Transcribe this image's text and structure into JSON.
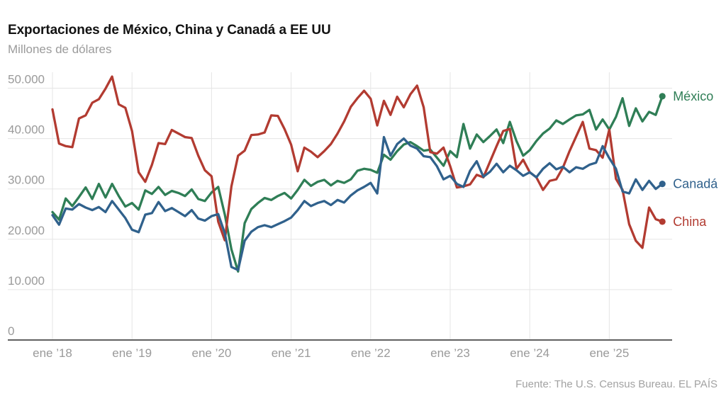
{
  "header": {
    "title": "Exportaciones de México, China y Canadá a EE UU",
    "subtitle": "Millones de dólares"
  },
  "footer": {
    "source": "Fuente: The U.S. Census Bureau. EL PAÍS"
  },
  "chart_data": {
    "type": "line",
    "title": "Exportaciones de México, China y Canadá a EE UU",
    "ylabel": "Millones de dólares",
    "x_start": "ene 2018",
    "x_end": "sep 2025",
    "x_frequency": "monthly",
    "ylim": [
      0,
      52500
    ],
    "grid": true,
    "legend_position": "right-of-line-ends",
    "y_ticks": [
      {
        "label": "0",
        "value": 0
      },
      {
        "label": "10.000",
        "value": 10000
      },
      {
        "label": "20.000",
        "value": 20000
      },
      {
        "label": "30.000",
        "value": 30000
      },
      {
        "label": "40.000",
        "value": 40000
      },
      {
        "label": "50.000",
        "value": 50000
      }
    ],
    "x_ticks": [
      {
        "label": "ene ’18",
        "month_index": 0
      },
      {
        "label": "ene ’19",
        "month_index": 12
      },
      {
        "label": "ene ’20",
        "month_index": 24
      },
      {
        "label": "ene ’21",
        "month_index": 36
      },
      {
        "label": "ene ’22",
        "month_index": 48
      },
      {
        "label": "ene ’23",
        "month_index": 60
      },
      {
        "label": "ene ’24",
        "month_index": 72
      },
      {
        "label": "ene ’25",
        "month_index": 84
      }
    ],
    "series": [
      {
        "id": "mexico",
        "name": "México",
        "color": "#2f7e56",
        "values": [
          25400,
          23900,
          28100,
          26600,
          28400,
          30300,
          28000,
          31000,
          28300,
          31000,
          28600,
          26500,
          27200,
          25900,
          29700,
          29000,
          30400,
          28800,
          29600,
          29200,
          28600,
          29900,
          28000,
          27600,
          29300,
          30400,
          24900,
          18000,
          13600,
          23200,
          26000,
          27200,
          28200,
          27800,
          28600,
          29200,
          28100,
          29800,
          31800,
          30600,
          31400,
          31800,
          30700,
          31600,
          31200,
          31900,
          33600,
          34000,
          33800,
          33200,
          36800,
          35800,
          37500,
          38800,
          39300,
          38500,
          37600,
          37800,
          36200,
          34600,
          37500,
          36300,
          42900,
          38000,
          40800,
          39300,
          40500,
          41800,
          39100,
          43300,
          39500,
          36600,
          37700,
          39500,
          41000,
          42000,
          43600,
          42900,
          43800,
          44600,
          44800,
          45700,
          41800,
          43800,
          41800,
          44300,
          48000,
          42500,
          46000,
          43400,
          45300,
          44700,
          48400
        ]
      },
      {
        "id": "china",
        "name": "China",
        "color": "#b23b31",
        "values": [
          45800,
          39000,
          38500,
          38300,
          44000,
          44600,
          47100,
          47800,
          49900,
          52300,
          46800,
          46100,
          41500,
          33300,
          31400,
          34800,
          39100,
          38900,
          41700,
          41000,
          40300,
          40100,
          36600,
          33700,
          32500,
          23500,
          19800,
          30500,
          36600,
          37600,
          40700,
          40800,
          41200,
          44600,
          44500,
          41900,
          38800,
          33500,
          38200,
          37400,
          36300,
          37500,
          38900,
          41000,
          43400,
          46300,
          48000,
          49500,
          47900,
          42600,
          47500,
          44700,
          48300,
          46200,
          48800,
          50500,
          46200,
          37300,
          37000,
          38200,
          34500,
          30300,
          30500,
          30900,
          32800,
          32300,
          35400,
          38500,
          41500,
          41900,
          34000,
          35800,
          33300,
          32300,
          29800,
          31600,
          31900,
          34200,
          37500,
          40400,
          43300,
          38000,
          37700,
          36200,
          41800,
          32000,
          29800,
          23000,
          19700,
          18300,
          26300,
          24000,
          23500
        ]
      },
      {
        "id": "canada",
        "name": "Canadá",
        "color": "#30618c",
        "values": [
          24800,
          22900,
          26100,
          25900,
          27000,
          26300,
          25800,
          26400,
          25400,
          27600,
          25900,
          24200,
          21900,
          21400,
          24900,
          25200,
          27400,
          25600,
          26200,
          25400,
          24600,
          25800,
          24100,
          23700,
          24600,
          25000,
          21200,
          14500,
          13900,
          19700,
          21500,
          22400,
          22800,
          22400,
          23000,
          23600,
          24300,
          25800,
          27600,
          26600,
          27200,
          27600,
          26800,
          27800,
          27300,
          28700,
          29700,
          30400,
          31200,
          29100,
          40300,
          36600,
          38900,
          40000,
          38600,
          38000,
          36500,
          36300,
          34500,
          31900,
          32600,
          31000,
          30400,
          33600,
          35500,
          32400,
          33400,
          35000,
          33300,
          34600,
          33700,
          32600,
          33300,
          32300,
          34000,
          35100,
          33900,
          34400,
          33300,
          34300,
          34000,
          34800,
          35200,
          38500,
          36100,
          34000,
          29500,
          29100,
          31900,
          29800,
          31600,
          30000,
          31000
        ]
      }
    ]
  },
  "colors": {
    "grid": "#e5e5e5",
    "axis": "#2d2d2d",
    "tick_text": "#9a9a9a",
    "title_text": "#121212",
    "muted_text": "#9b9b9b"
  }
}
